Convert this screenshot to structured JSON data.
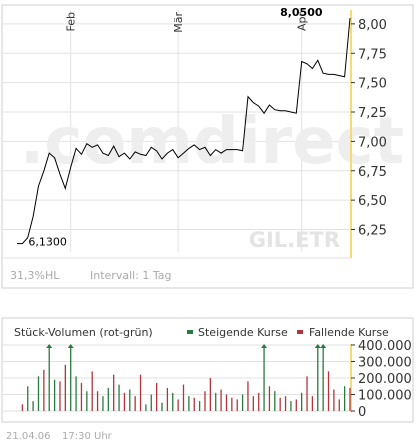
{
  "colors": {
    "line": "#000000",
    "grid": "#e2e2e2",
    "frame": "#cfcfcf",
    "highlight_axis": "#f3dc74",
    "watermark": "#eeeeee",
    "watermark_accent": "#fbf0c8",
    "rising": "#2a7a3f",
    "falling": "#b3353b",
    "label": "#333333",
    "muted": "#aaaaaa"
  },
  "watermark": {
    "brand": ".comdirect",
    "ticker": "GIL.ETR"
  },
  "price_panel": {
    "footer_hl": "31,3%HL",
    "footer_interval": "Intervall: 1 Tag"
  },
  "volume_panel": {
    "title": "Stück-Volumen (rot-grün)",
    "legend": [
      {
        "name": "Steigende Kurse",
        "color": "#2a7a3f"
      },
      {
        "name": "Fallende Kurse",
        "color": "#b3353b"
      }
    ]
  },
  "timestamp": {
    "date": "21.04.06",
    "time": "17:30 Uhr"
  },
  "chart_data": [
    {
      "type": "line",
      "title": "",
      "xlabel": "",
      "ylabel": "",
      "ylim": [
        6.05,
        8.05
      ],
      "y_ticks": [
        "6,25",
        "6,50",
        "6,75",
        "7,00",
        "7,25",
        "7,50",
        "7,75",
        "8,00"
      ],
      "x_ticks": [
        {
          "label": "Feb",
          "index": 10
        },
        {
          "label": "Mär",
          "index": 30
        },
        {
          "label": "Apr",
          "index": 53
        }
      ],
      "grid": true,
      "annotations": [
        {
          "text": "6,1300",
          "index": 1,
          "value": 6.13
        },
        {
          "text": "8,0500",
          "index": 58,
          "value": 8.05
        }
      ],
      "series": [
        {
          "values": [
            6.13,
            6.13,
            6.18,
            6.36,
            6.62,
            6.75,
            6.9,
            6.86,
            6.72,
            6.6,
            6.78,
            6.94,
            6.89,
            6.98,
            6.95,
            6.97,
            6.9,
            6.88,
            6.96,
            6.87,
            6.9,
            6.85,
            6.91,
            6.89,
            6.88,
            6.95,
            6.92,
            6.85,
            6.9,
            6.93,
            6.86,
            6.9,
            6.94,
            6.97,
            6.93,
            6.95,
            6.88,
            6.93,
            6.9,
            6.93,
            6.93,
            6.93,
            6.92,
            7.38,
            7.33,
            7.3,
            7.24,
            7.31,
            7.27,
            7.26,
            7.26,
            7.25,
            7.24,
            7.68,
            7.66,
            7.62,
            7.69,
            7.58,
            7.57,
            7.57,
            7.56,
            7.55,
            8.05
          ]
        }
      ]
    },
    {
      "type": "bar",
      "title": "",
      "xlabel": "",
      "ylabel": "",
      "ylim": [
        0,
        400000
      ],
      "y_ticks": [
        "0",
        "100.000",
        "200.000",
        "300.000",
        "400.000"
      ],
      "series": [
        {
          "name": "Steigende Kurse",
          "color": "#2a7a3f",
          "values": [
            0,
            0,
            150000,
            60000,
            210000,
            0,
            400000,
            190000,
            0,
            0,
            400000,
            210000,
            0,
            120000,
            0,
            0,
            90000,
            140000,
            0,
            160000,
            0,
            130000,
            0,
            0,
            40000,
            100000,
            0,
            50000,
            0,
            110000,
            0,
            0,
            90000,
            0,
            60000,
            0,
            0,
            110000,
            0,
            0,
            0,
            0,
            100000,
            0,
            0,
            0,
            400000,
            0,
            120000,
            0,
            0,
            60000,
            0,
            110000,
            0,
            0,
            400000,
            400000,
            0,
            0,
            0,
            150000,
            0
          ]
        },
        {
          "name": "Fallende Kurse",
          "color": "#b3353b",
          "values": [
            0,
            40000,
            0,
            0,
            0,
            250000,
            0,
            0,
            180000,
            280000,
            0,
            0,
            170000,
            0,
            240000,
            120000,
            0,
            0,
            220000,
            0,
            110000,
            0,
            90000,
            220000,
            0,
            0,
            170000,
            0,
            140000,
            0,
            70000,
            160000,
            0,
            80000,
            0,
            120000,
            200000,
            0,
            130000,
            100000,
            80000,
            70000,
            0,
            180000,
            90000,
            110000,
            0,
            150000,
            0,
            80000,
            90000,
            0,
            70000,
            0,
            210000,
            90000,
            0,
            0,
            240000,
            130000,
            70000,
            0,
            140000
          ]
        }
      ]
    }
  ]
}
